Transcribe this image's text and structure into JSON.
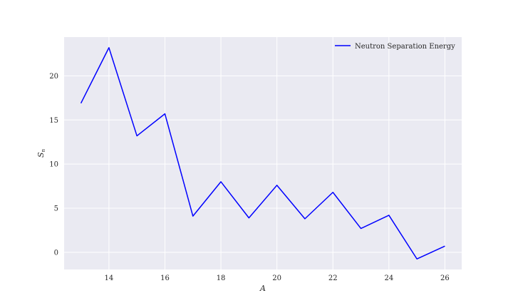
{
  "chart_data": {
    "type": "line",
    "title": "",
    "xlabel": "A",
    "ylabel_main": "S",
    "ylabel_sub": "n",
    "xlim": [
      12.4,
      26.6
    ],
    "ylim": [
      -1.95,
      24.4
    ],
    "xticks": [
      14,
      16,
      18,
      20,
      22,
      24,
      26
    ],
    "yticks": [
      0,
      5,
      10,
      15,
      20
    ],
    "grid": true,
    "legend_position": "top-right",
    "background_color": "#eaeaf2",
    "series": [
      {
        "name": "Neutron Separation Energy",
        "color": "#0000ff",
        "x": [
          13,
          14,
          15,
          16,
          17,
          18,
          19,
          20,
          21,
          22,
          23,
          24,
          25,
          26
        ],
        "y": [
          16.9,
          23.2,
          13.2,
          15.7,
          4.1,
          8.0,
          3.9,
          7.6,
          3.8,
          6.8,
          2.7,
          4.2,
          -0.75,
          0.7
        ]
      }
    ]
  }
}
